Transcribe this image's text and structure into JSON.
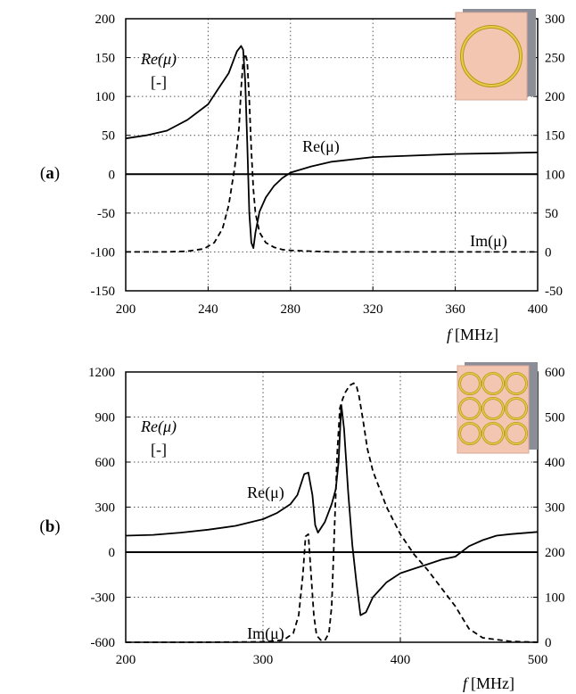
{
  "panels": [
    {
      "label": "(a)",
      "label_letter": "a",
      "inset": "single-ring-sample-icon",
      "chart_data": {
        "type": "line",
        "xlabel_var": "f",
        "xlabel_unit": "[MHz]",
        "xlim": [
          200,
          400
        ],
        "xticks": [
          200,
          240,
          280,
          320,
          360,
          400
        ],
        "ylim": [
          -150,
          200
        ],
        "yticks": [
          -150,
          -100,
          -50,
          0,
          50,
          100,
          150,
          200
        ],
        "y2lim": [
          -50,
          300
        ],
        "y2ticks": [
          -50,
          0,
          50,
          100,
          150,
          200,
          250,
          300
        ],
        "ylabel": "Re(μ)",
        "ylabel_unit": "[-]",
        "grid": true,
        "annotations": {
          "re": "Re(μ)",
          "im": "Im(μ)"
        },
        "series": [
          {
            "name": "Re(μ)",
            "axis": "left",
            "style": "solid",
            "x": [
              200,
              210,
              220,
              230,
              240,
              245,
              250,
              254,
              256,
              257,
              258,
              259,
              260,
              261,
              262,
              263,
              265,
              268,
              272,
              276,
              280,
              290,
              300,
              320,
              340,
              360,
              380,
              400
            ],
            "y": [
              46,
              50,
              56,
              70,
              90,
              110,
              130,
              158,
              165,
              160,
              120,
              40,
              -50,
              -88,
              -95,
              -75,
              -48,
              -30,
              -15,
              -5,
              2,
              10,
              16,
              22,
              24,
              26,
              27,
              28
            ]
          },
          {
            "name": "Im(μ)",
            "axis": "right",
            "style": "dashed",
            "x": [
              200,
              220,
              230,
              238,
              243,
              247,
              250,
              253,
              255,
              256,
              257,
              258,
              259,
              260,
              261,
              262,
              263,
              265,
              268,
              272,
              276,
              280,
              290,
              300,
              320,
              360,
              400
            ],
            "y": [
              0,
              0,
              1,
              4,
              12,
              30,
              60,
              110,
              160,
              210,
              245,
              255,
              245,
              195,
              130,
              80,
              50,
              25,
              12,
              6,
              3,
              2,
              1,
              0,
              0,
              0,
              0
            ]
          }
        ]
      }
    },
    {
      "label": "(b)",
      "label_letter": "b",
      "inset": "ring-array-sample-icon",
      "chart_data": {
        "type": "line",
        "xlabel_var": "f",
        "xlabel_unit": "[MHz]",
        "xlim": [
          200,
          500
        ],
        "xticks": [
          200,
          300,
          400,
          500
        ],
        "ylim": [
          -600,
          1200
        ],
        "yticks": [
          -600,
          -300,
          0,
          300,
          600,
          900,
          1200
        ],
        "y2lim": [
          0,
          600
        ],
        "y2ticks": [
          0,
          100,
          200,
          300,
          400,
          500,
          600
        ],
        "ylabel": "Re(μ)",
        "ylabel_unit": "[-]",
        "grid": true,
        "annotations": {
          "re": "Re(μ)",
          "im": "Im(μ)"
        },
        "series": [
          {
            "name": "Re(μ)",
            "axis": "left",
            "style": "solid",
            "x": [
              200,
              220,
              240,
              260,
              280,
              300,
              310,
              320,
              325,
              330,
              333,
              336,
              338,
              340,
              345,
              350,
              353,
              355,
              357,
              359,
              362,
              365,
              368,
              371,
              375,
              380,
              390,
              400,
              410,
              420,
              430,
              440,
              450,
              460,
              470,
              480,
              500
            ],
            "y": [
              110,
              115,
              130,
              150,
              175,
              220,
              260,
              320,
              380,
              520,
              530,
              380,
              180,
              130,
              200,
              320,
              420,
              600,
              980,
              820,
              400,
              50,
              -200,
              -420,
              -400,
              -300,
              -200,
              -140,
              -110,
              -80,
              -50,
              -30,
              40,
              80,
              110,
              120,
              135
            ]
          },
          {
            "name": "Im(μ)",
            "axis": "right",
            "style": "dashed",
            "x": [
              200,
              250,
              300,
              315,
              322,
              326,
              329,
              331,
              333,
              335,
              337,
              339,
              342,
              345,
              348,
              350,
              352,
              354,
              356,
              358,
              360,
              363,
              366,
              368,
              370,
              373,
              376,
              380,
              390,
              400,
              410,
              420,
              430,
              440,
              450,
              460,
              480,
              500
            ],
            "y": [
              0,
              0,
              1,
              5,
              20,
              60,
              150,
              235,
              240,
              150,
              60,
              15,
              5,
              4,
              20,
              80,
              250,
              420,
              520,
              540,
              555,
              570,
              575,
              570,
              545,
              490,
              430,
              380,
              300,
              240,
              195,
              160,
              120,
              80,
              30,
              10,
              2,
              0
            ]
          }
        ]
      }
    }
  ]
}
